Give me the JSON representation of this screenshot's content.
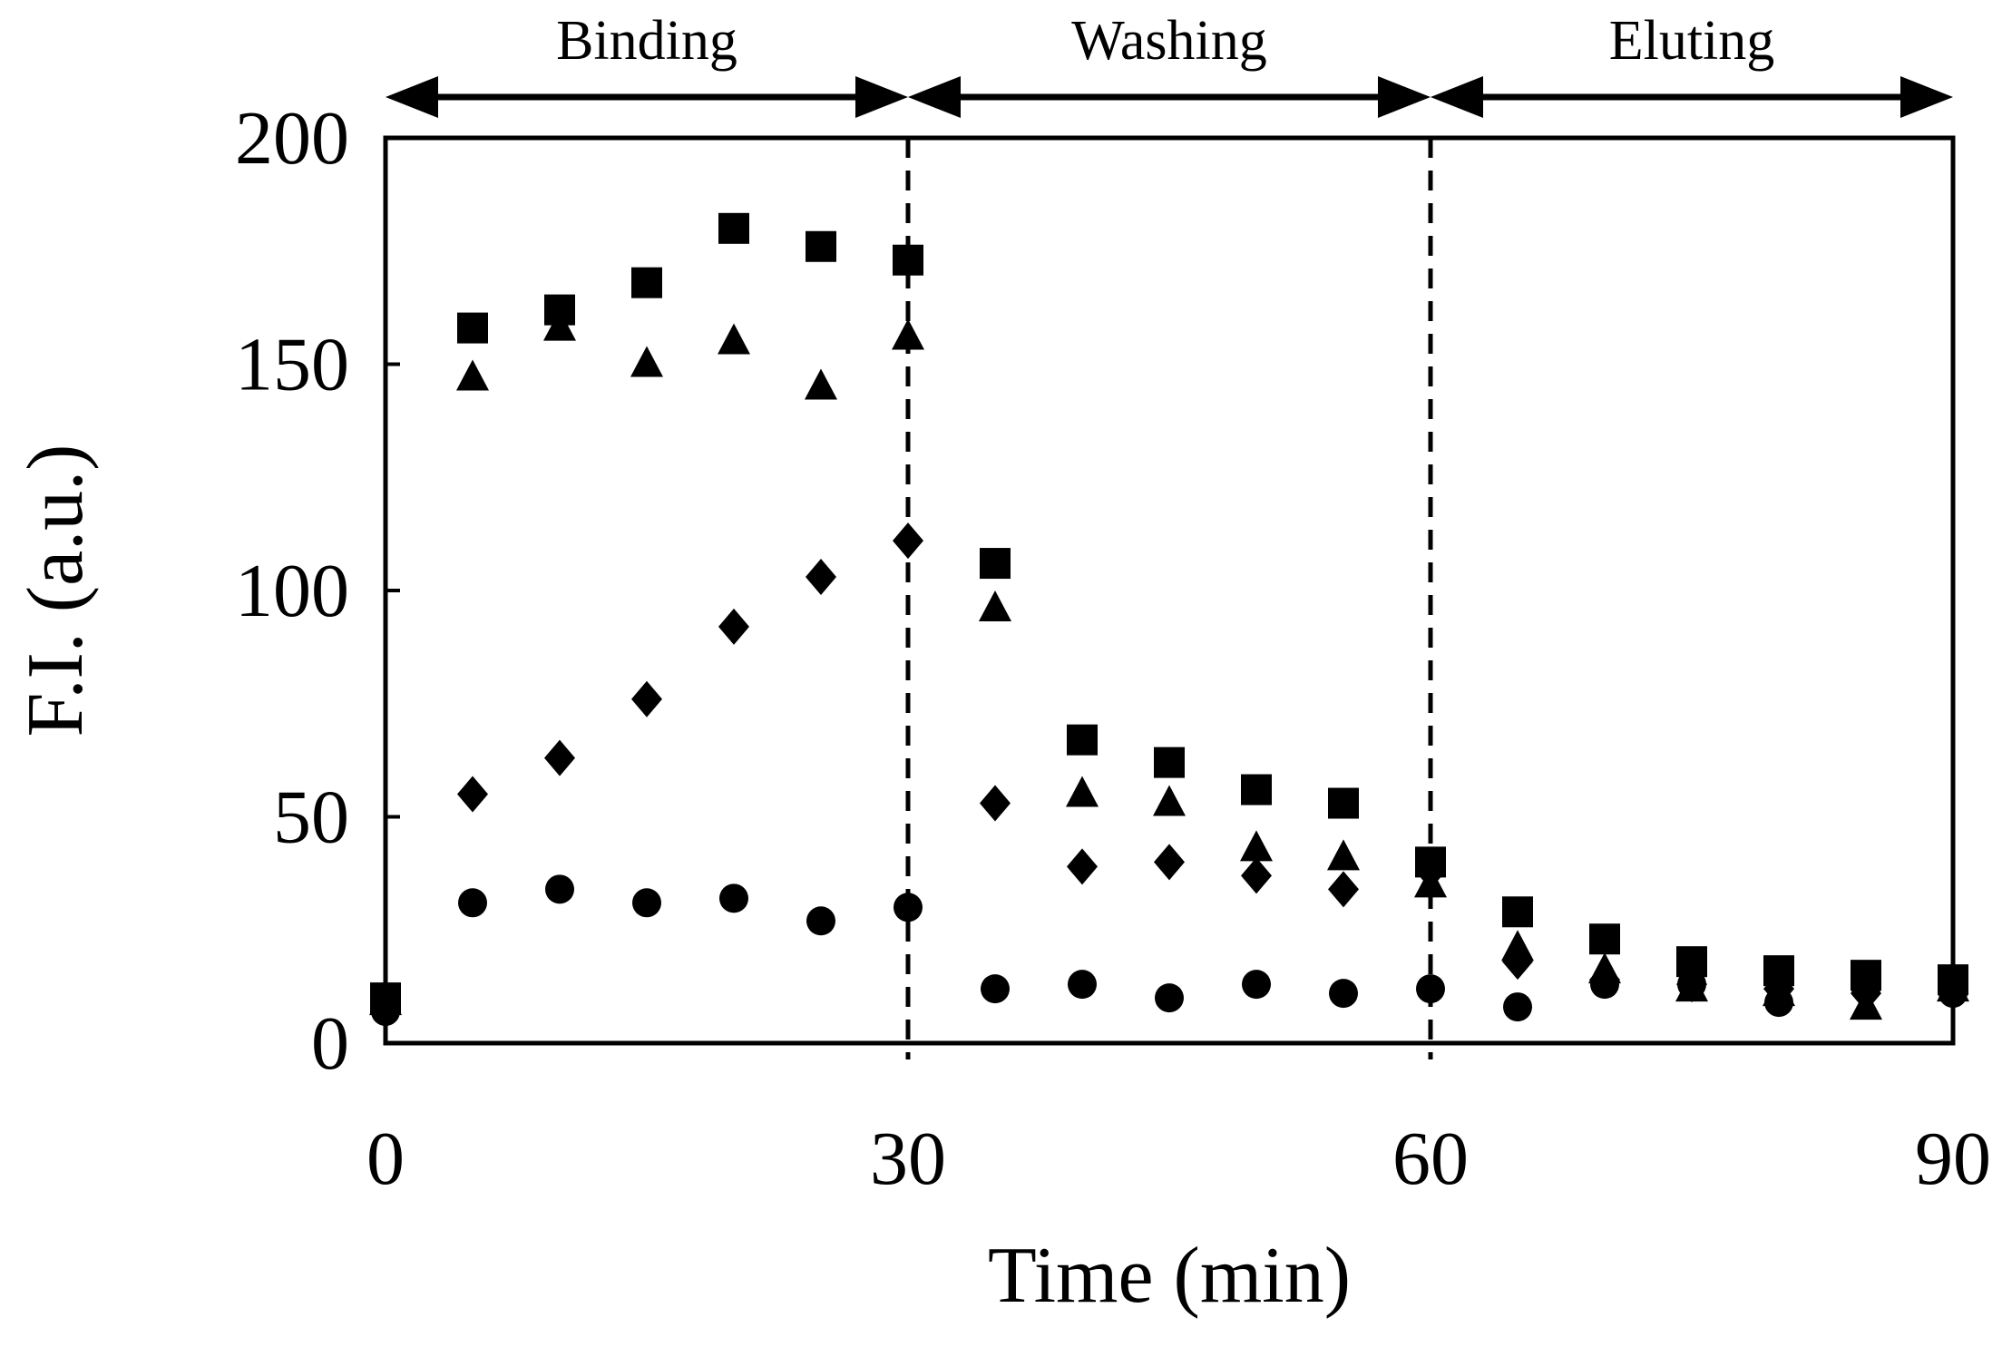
{
  "chart_data": {
    "type": "scatter",
    "title": "",
    "xlabel": "Time (min)",
    "ylabel": "F.I. (a.u.)",
    "xlim": [
      0,
      90
    ],
    "ylim": [
      0,
      200
    ],
    "xticks": [
      0,
      30,
      60,
      90
    ],
    "yticks": [
      0,
      50,
      100,
      150,
      200
    ],
    "xtick_labels": [
      "0",
      "30",
      "60",
      "90"
    ],
    "ytick_labels": [
      "0",
      "50",
      "100",
      "150",
      "200"
    ],
    "grid": false,
    "legend": "none",
    "phase_boundaries": [
      30,
      60
    ],
    "phases": [
      {
        "label": "Binding",
        "start": 0,
        "end": 30
      },
      {
        "label": "Washing",
        "start": 30,
        "end": 60
      },
      {
        "label": "Eluting",
        "start": 60,
        "end": 90
      }
    ],
    "series": [
      {
        "name": "square",
        "marker": "square",
        "x": [
          0,
          5,
          10,
          15,
          20,
          25,
          30,
          35,
          40,
          45,
          50,
          55,
          60,
          65,
          70,
          75,
          80,
          85,
          90
        ],
        "y": [
          10,
          158,
          162,
          168,
          180,
          176,
          173,
          106,
          67,
          62,
          56,
          53,
          40,
          29,
          23,
          18,
          16,
          15,
          14
        ]
      },
      {
        "name": "triangle",
        "marker": "triangle",
        "x": [
          0,
          5,
          10,
          15,
          20,
          25,
          30,
          35,
          40,
          45,
          50,
          55,
          60,
          65,
          70,
          75,
          80,
          85,
          90
        ],
        "y": [
          9,
          147,
          158,
          150,
          155,
          145,
          156,
          96,
          55,
          53,
          43,
          41,
          35,
          21,
          16,
          12,
          11,
          8,
          12
        ]
      },
      {
        "name": "diamond",
        "marker": "diamond",
        "x": [
          0,
          5,
          10,
          15,
          20,
          25,
          30,
          35,
          40,
          45,
          50,
          55,
          60,
          65,
          70,
          75,
          80,
          85,
          90
        ],
        "y": [
          8,
          55,
          63,
          76,
          92,
          103,
          111,
          53,
          39,
          40,
          37,
          34,
          38,
          18,
          14,
          13,
          12,
          11,
          12
        ]
      },
      {
        "name": "circle",
        "marker": "circle",
        "x": [
          0,
          5,
          10,
          15,
          20,
          25,
          30,
          35,
          40,
          45,
          50,
          55,
          60,
          65,
          70,
          75,
          80,
          85,
          90
        ],
        "y": [
          7,
          31,
          34,
          31,
          32,
          27,
          30,
          12,
          13,
          10,
          13,
          11,
          12,
          8,
          13,
          13,
          9,
          12,
          11
        ]
      }
    ]
  }
}
